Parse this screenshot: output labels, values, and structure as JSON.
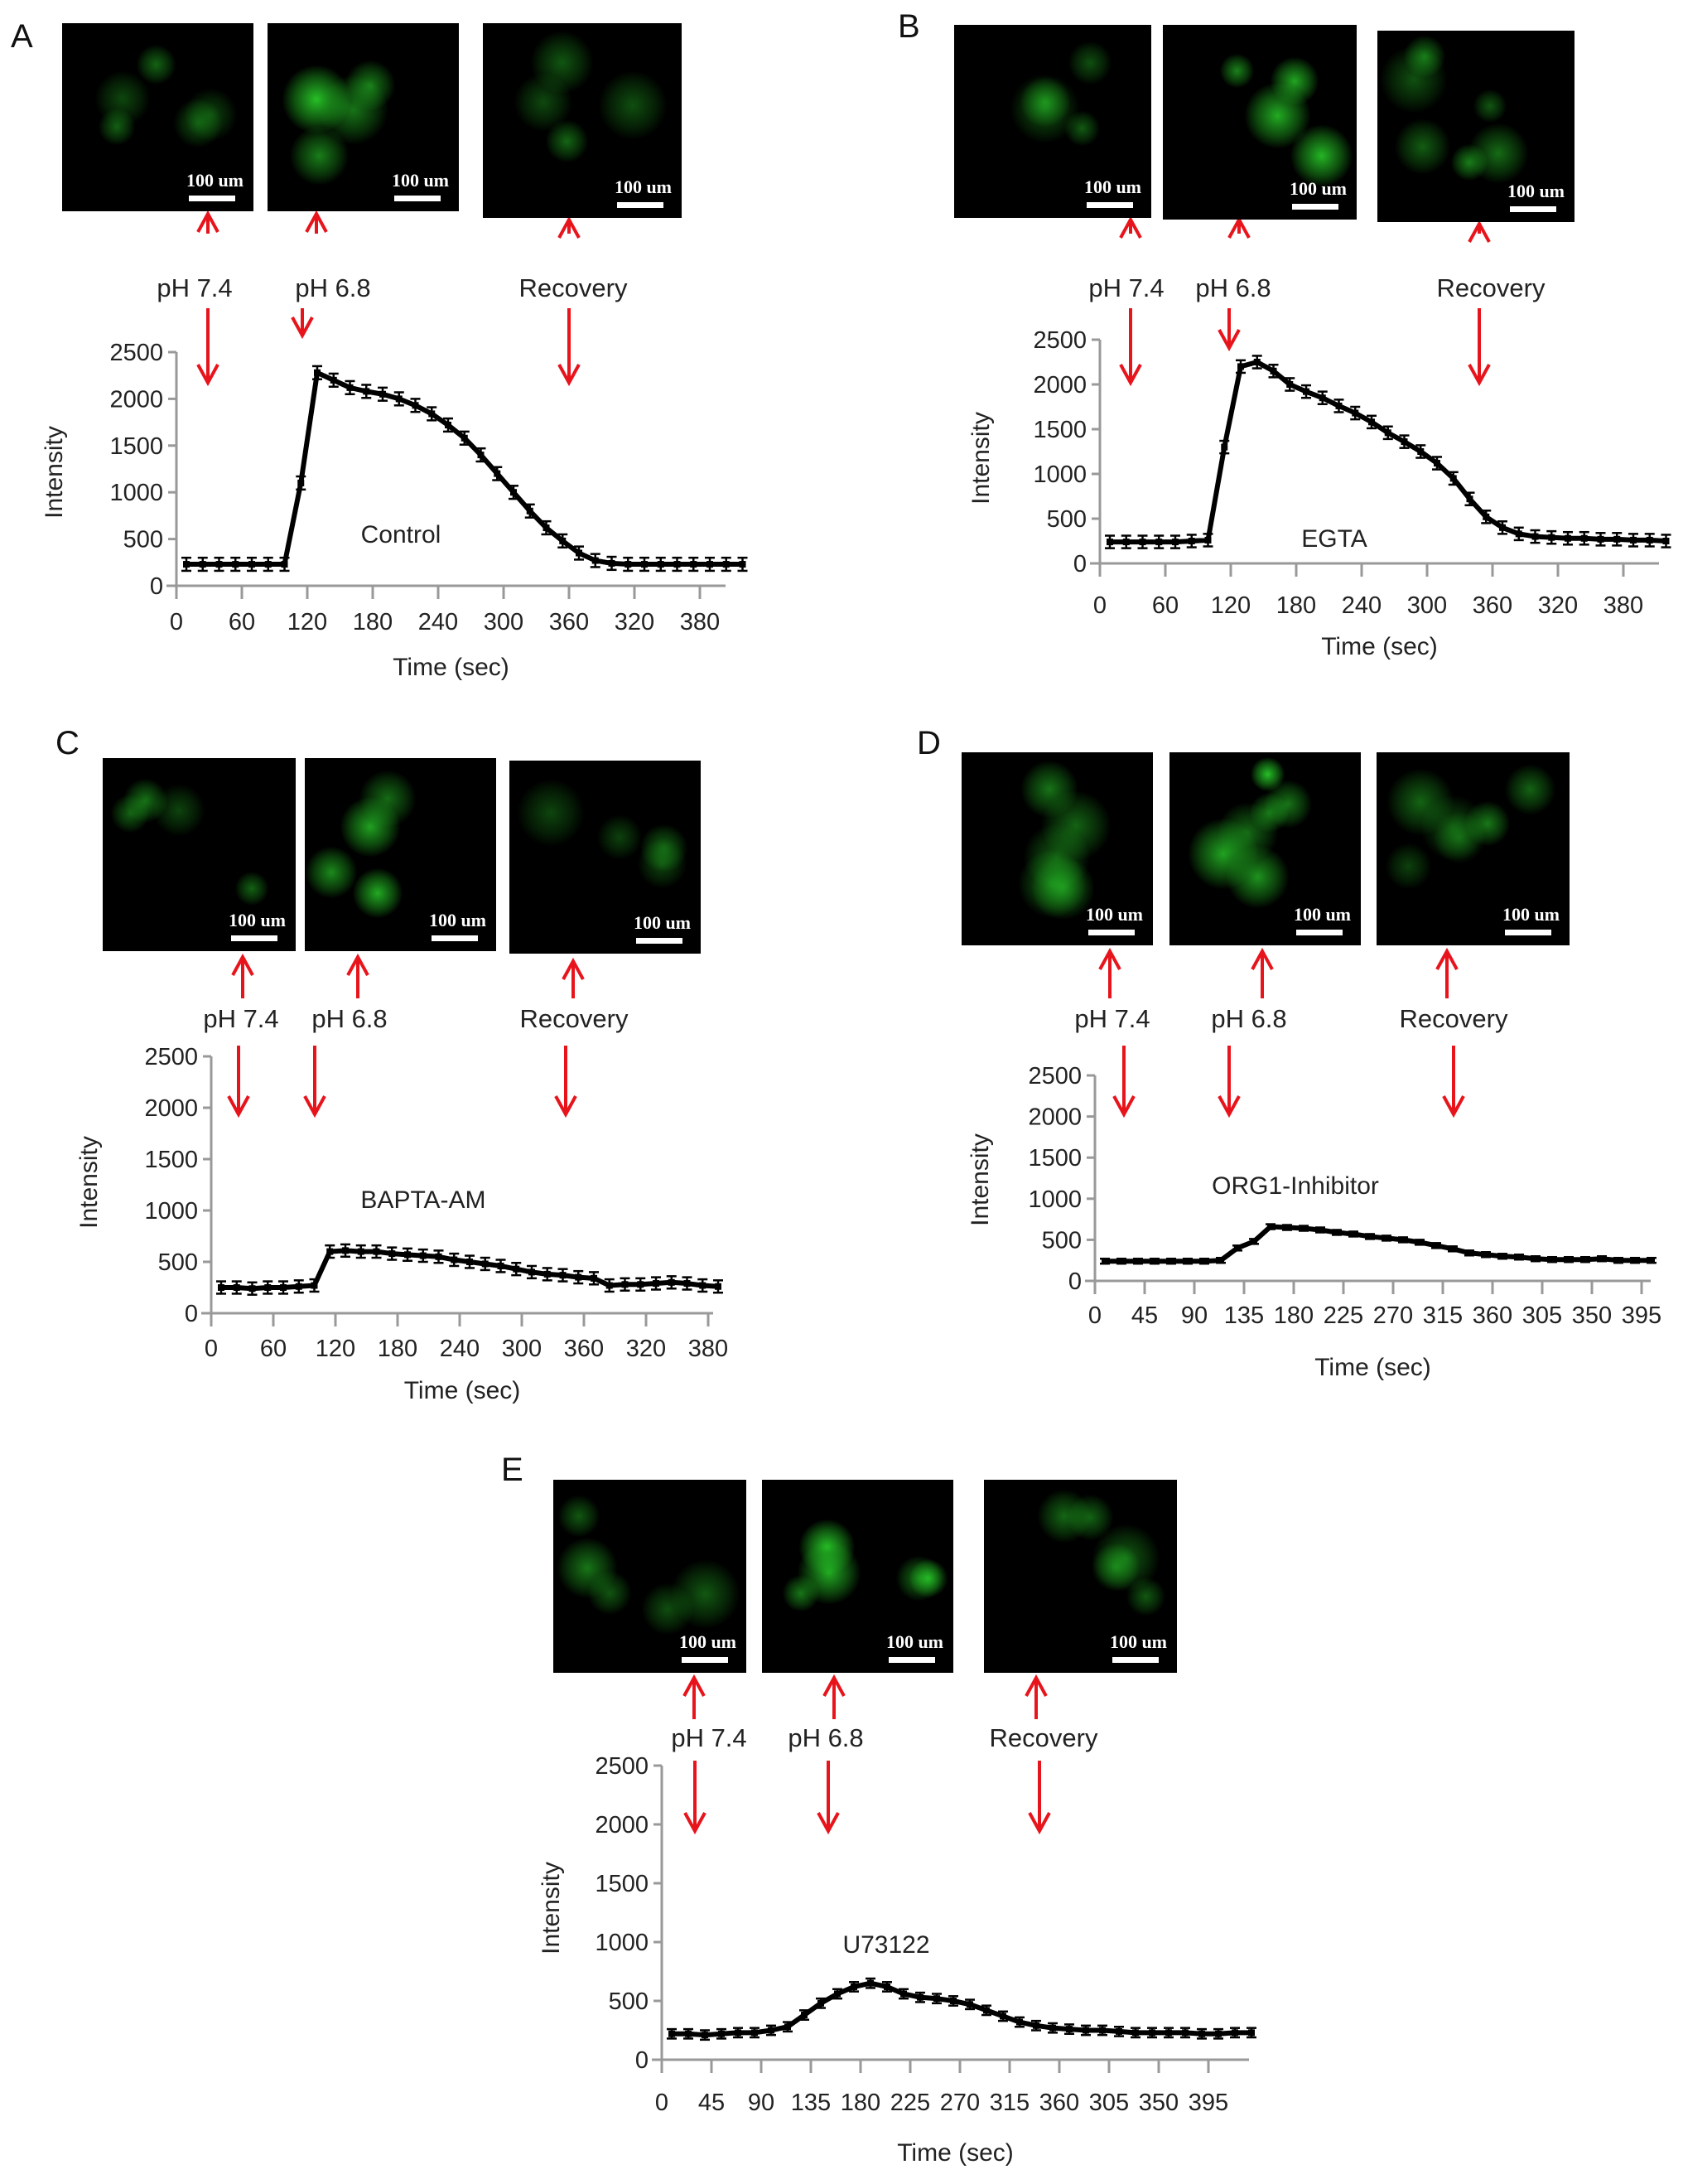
{
  "panels": [
    {
      "letter": "A",
      "scale_labels": [
        "100 um",
        "100 um",
        "100 um"
      ],
      "annotations": [
        "pH 7.4",
        "pH 6.8",
        "Recovery"
      ]
    },
    {
      "letter": "B",
      "scale_labels": [
        "100 um",
        "100 um",
        "100 um"
      ],
      "annotations": [
        "pH 7.4",
        "pH 6.8",
        "Recovery"
      ]
    },
    {
      "letter": "C",
      "scale_labels": [
        "100 um",
        "100 um",
        "100 um"
      ],
      "annotations": [
        "pH 7.4",
        "pH 6.8",
        "Recovery"
      ]
    },
    {
      "letter": "D",
      "scale_labels": [
        "100 um",
        "100 um",
        "100 um"
      ],
      "annotations": [
        "pH 7.4",
        "pH 6.8",
        "Recovery"
      ]
    },
    {
      "letter": "E",
      "scale_labels": [
        "100 um",
        "100 um",
        "100 um"
      ],
      "annotations": [
        "pH 7.4",
        "pH 6.8",
        "Recovery"
      ]
    }
  ],
  "colors": {
    "arrow": "#e8141c",
    "line": "#000000",
    "axis": "#999999",
    "fluorescence": "#2ee62e"
  },
  "chart_data": [
    {
      "type": "line",
      "label": "Control",
      "xlabel": "Time (sec)",
      "ylabel": "Intensity",
      "ylim": [
        0,
        2500
      ],
      "yticks": [
        0,
        500,
        1000,
        1500,
        2000,
        2500
      ],
      "xtick_labels": [
        "0",
        "60",
        "120",
        "180",
        "240",
        "300",
        "360",
        "320",
        "380"
      ],
      "points_per_tick": 4,
      "error_bar": 70,
      "values": [
        230,
        230,
        230,
        230,
        230,
        230,
        230,
        1100,
        2280,
        2200,
        2120,
        2080,
        2050,
        2000,
        1930,
        1840,
        1720,
        1580,
        1400,
        1200,
        1000,
        800,
        620,
        480,
        350,
        270,
        240,
        230,
        230,
        230,
        230,
        230,
        230,
        230,
        230
      ]
    },
    {
      "type": "line",
      "label": "EGTA",
      "xlabel": "Time (sec)",
      "ylabel": "Intensity",
      "ylim": [
        0,
        2500
      ],
      "yticks": [
        0,
        500,
        1000,
        1500,
        2000,
        2500
      ],
      "xtick_labels": [
        "0",
        "60",
        "120",
        "180",
        "240",
        "300",
        "360",
        "320",
        "380"
      ],
      "points_per_tick": 4,
      "error_bar": 70,
      "values": [
        240,
        240,
        240,
        240,
        240,
        250,
        260,
        1300,
        2200,
        2250,
        2150,
        2000,
        1920,
        1850,
        1760,
        1680,
        1580,
        1460,
        1360,
        1250,
        1120,
        950,
        720,
        520,
        400,
        330,
        300,
        290,
        280,
        280,
        270,
        270,
        260,
        260,
        250
      ]
    },
    {
      "type": "line",
      "label": "BAPTA-AM",
      "xlabel": "Time (sec)",
      "ylabel": "Intensity",
      "ylim": [
        0,
        2500
      ],
      "yticks": [
        0,
        500,
        1000,
        1500,
        2000,
        2500
      ],
      "xtick_labels": [
        "0",
        "60",
        "120",
        "180",
        "240",
        "300",
        "360",
        "320",
        "380"
      ],
      "points_per_tick": 4,
      "error_bar": 60,
      "values": [
        250,
        250,
        240,
        250,
        250,
        260,
        270,
        600,
        610,
        600,
        600,
        580,
        570,
        560,
        550,
        520,
        500,
        480,
        460,
        430,
        400,
        380,
        370,
        350,
        340,
        270,
        280,
        280,
        290,
        300,
        290,
        270,
        260
      ]
    },
    {
      "type": "line",
      "label": "ORG1-Inhibitor",
      "xlabel": "Time (sec)",
      "ylabel": "Intensity",
      "ylim": [
        0,
        2500
      ],
      "yticks": [
        0,
        500,
        1000,
        1500,
        2000,
        2500
      ],
      "xtick_labels": [
        "0",
        "45",
        "90",
        "135",
        "180",
        "225",
        "270",
        "315",
        "360",
        "305",
        "350",
        "395"
      ],
      "points_per_tick": 3,
      "error_bar": 30,
      "values": [
        240,
        240,
        240,
        240,
        240,
        240,
        240,
        250,
        400,
        480,
        660,
        650,
        640,
        620,
        590,
        570,
        540,
        520,
        500,
        470,
        430,
        390,
        340,
        320,
        300,
        290,
        270,
        260,
        260,
        260,
        270,
        250,
        250,
        250
      ]
    },
    {
      "type": "line",
      "label": "U73122",
      "xlabel": "Time (sec)",
      "ylabel": "Intensity",
      "ylim": [
        0,
        2500
      ],
      "yticks": [
        0,
        500,
        1000,
        1500,
        2000,
        2500
      ],
      "xtick_labels": [
        "0",
        "45",
        "90",
        "135",
        "180",
        "225",
        "270",
        "315",
        "360",
        "305",
        "350",
        "395"
      ],
      "points_per_tick": 3,
      "error_bar": 40,
      "values": [
        220,
        220,
        210,
        220,
        230,
        230,
        250,
        280,
        380,
        480,
        560,
        620,
        650,
        620,
        560,
        530,
        520,
        500,
        470,
        420,
        370,
        320,
        290,
        270,
        260,
        250,
        250,
        240,
        230,
        230,
        230,
        230,
        220,
        220,
        230,
        230
      ]
    }
  ]
}
